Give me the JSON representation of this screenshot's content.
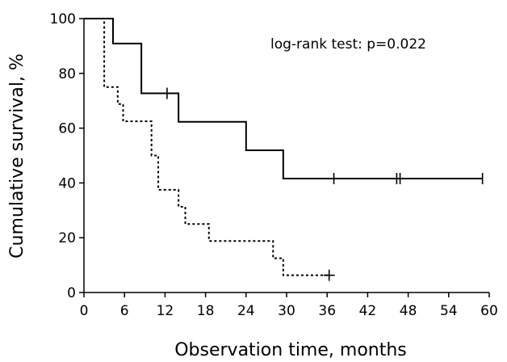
{
  "chart_data": {
    "type": "line",
    "chart_kind": "kaplan-meier",
    "xlabel": "Observation time, months",
    "ylabel": "Cumulative survival, %",
    "annotation": "log-rank test: p=0.022",
    "xlim": [
      0,
      60
    ],
    "ylim": [
      0,
      100
    ],
    "x_ticks": [
      0,
      6,
      12,
      18,
      24,
      30,
      36,
      42,
      48,
      54,
      60
    ],
    "y_ticks": [
      0,
      20,
      40,
      60,
      80,
      100
    ],
    "grid": false,
    "legend": "none",
    "series": [
      {
        "style": "solid",
        "color": "#000000",
        "steps": [
          {
            "x": 0,
            "y": 100
          },
          {
            "x": 4.3,
            "y": 90.9
          },
          {
            "x": 8.5,
            "y": 72.7
          },
          {
            "x": 14.0,
            "y": 62.3
          },
          {
            "x": 24.0,
            "y": 51.9
          },
          {
            "x": 29.5,
            "y": 41.6
          }
        ],
        "end_x": 59,
        "censored": [
          {
            "x": 12.3,
            "y": 72.7
          },
          {
            "x": 37.0,
            "y": 41.6
          },
          {
            "x": 46.3,
            "y": 41.6
          },
          {
            "x": 46.8,
            "y": 41.6
          },
          {
            "x": 59.0,
            "y": 41.6
          }
        ]
      },
      {
        "style": "dotted",
        "color": "#000000",
        "steps": [
          {
            "x": 0,
            "y": 100
          },
          {
            "x": 3.0,
            "y": 75.0
          },
          {
            "x": 5.0,
            "y": 68.8
          },
          {
            "x": 5.8,
            "y": 62.5
          },
          {
            "x": 10.0,
            "y": 50.0
          },
          {
            "x": 11.0,
            "y": 37.5
          },
          {
            "x": 14.0,
            "y": 31.3
          },
          {
            "x": 15.0,
            "y": 25.0
          },
          {
            "x": 18.5,
            "y": 18.8
          },
          {
            "x": 28.0,
            "y": 12.5
          },
          {
            "x": 29.5,
            "y": 6.3
          }
        ],
        "start_x": 2.7,
        "end_x": 36.3,
        "censored": [
          {
            "x": 36.3,
            "y": 6.3
          }
        ]
      }
    ]
  }
}
